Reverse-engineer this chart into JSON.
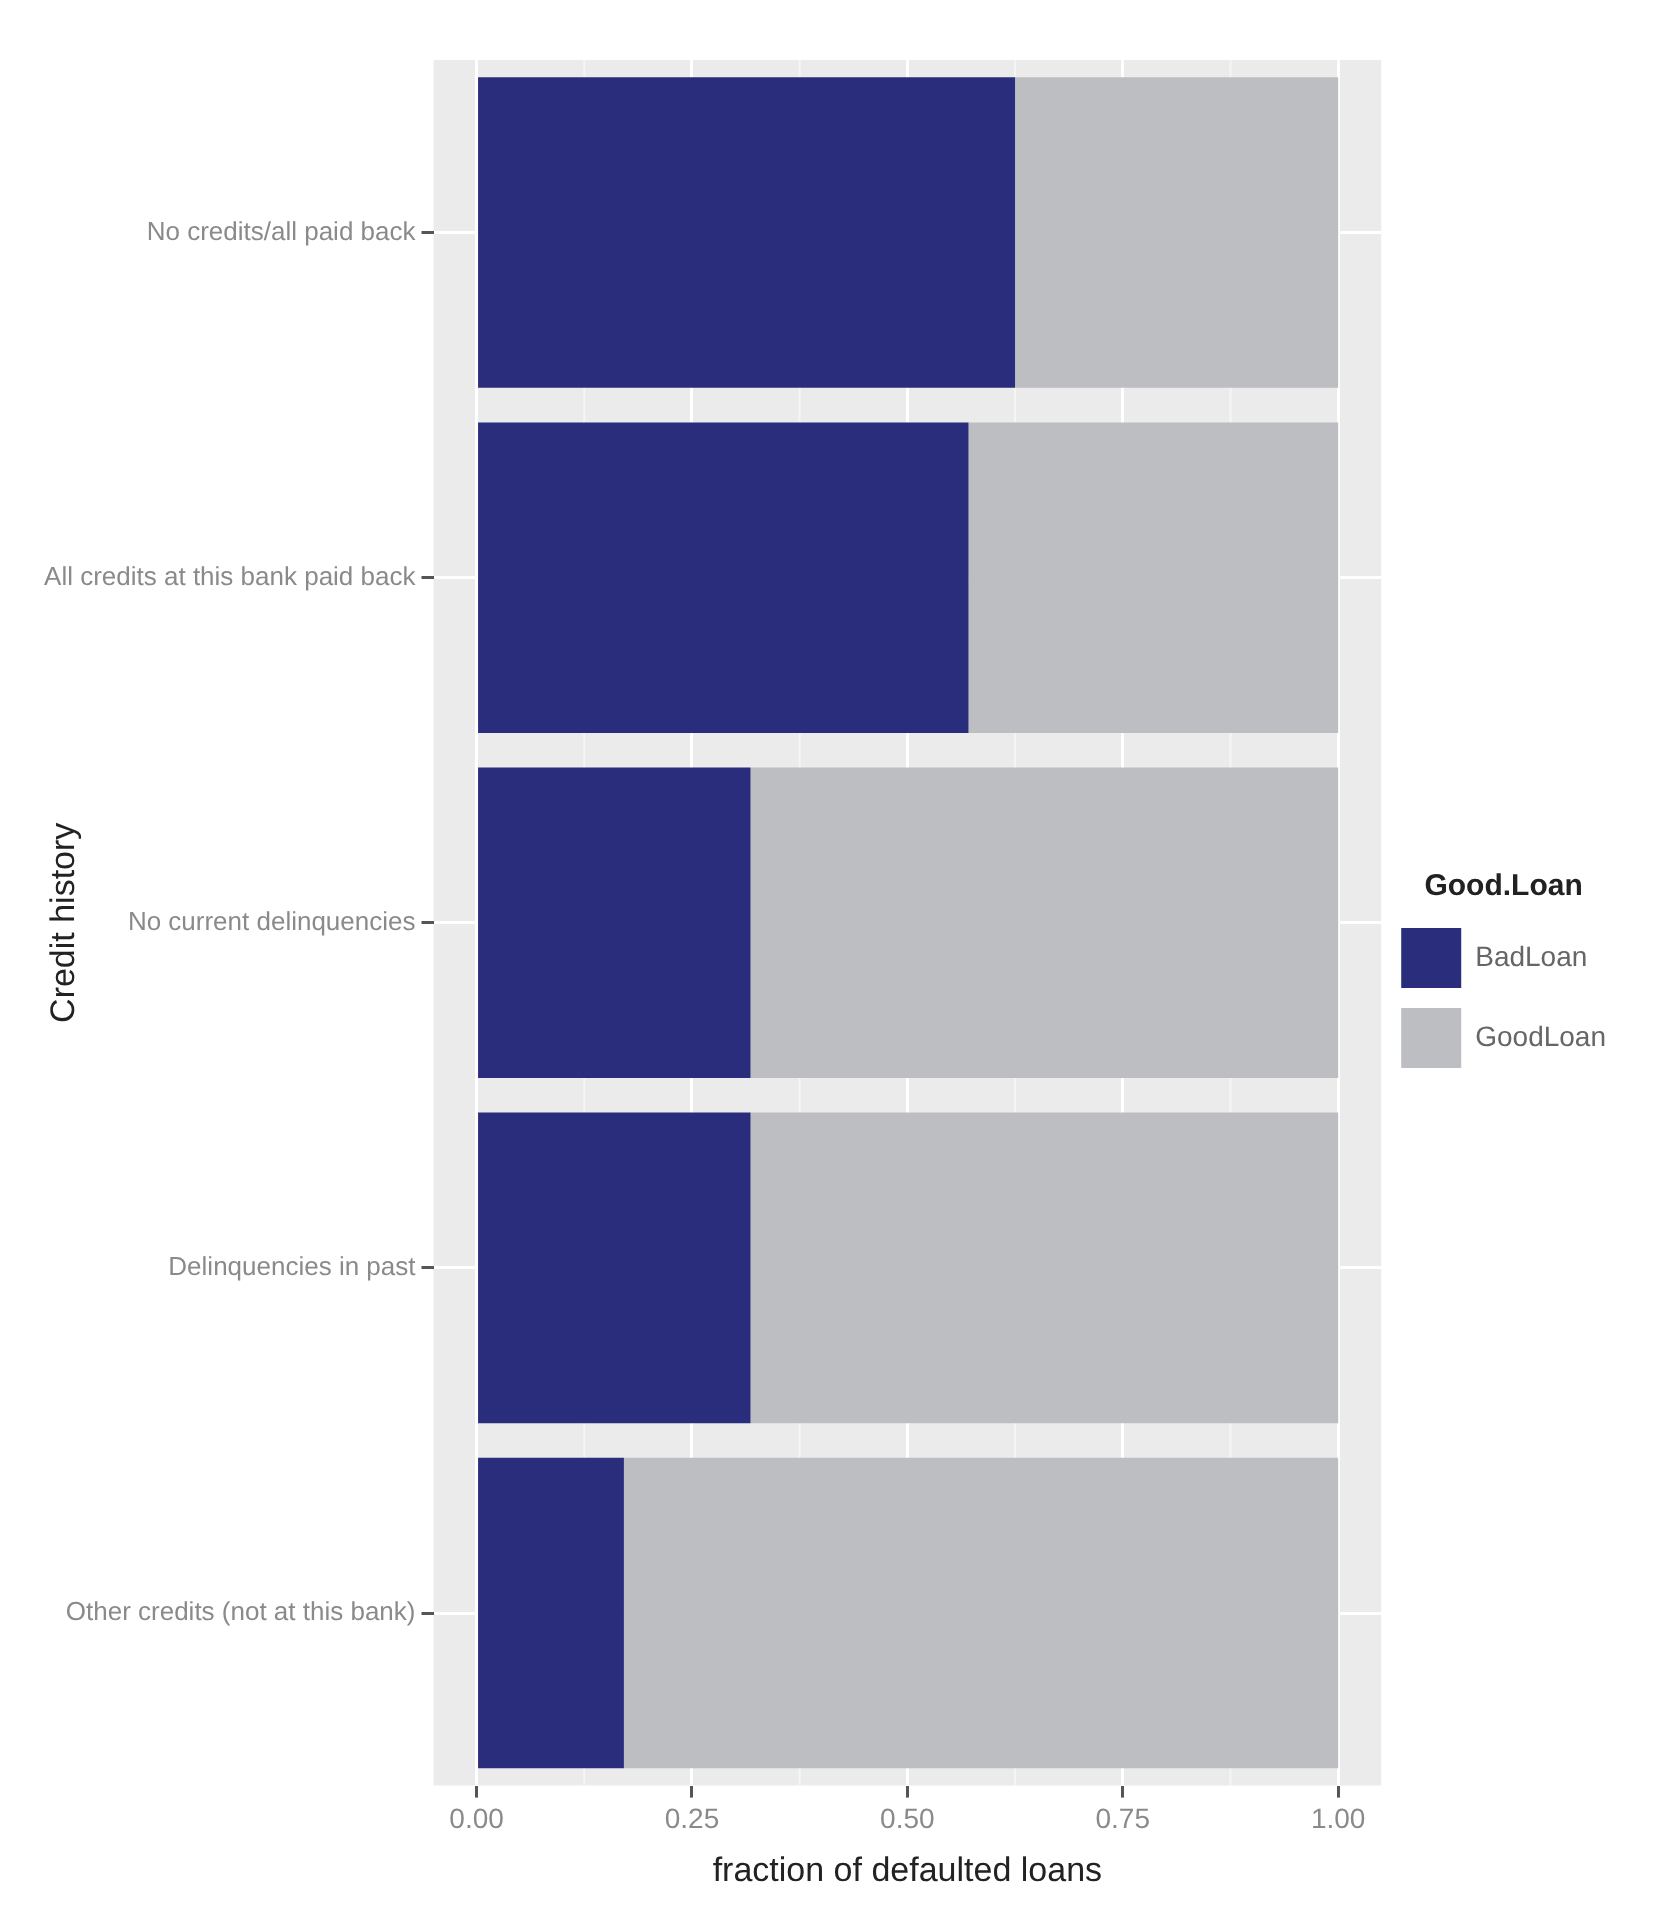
{
  "chart_data": {
    "type": "bar",
    "orientation": "horizontal",
    "stacked": true,
    "xlabel": "fraction of defaulted loans",
    "ylabel": "Credit history",
    "legend_title": "Good.Loan",
    "legend": "right",
    "grid": true,
    "categories": [
      "No credits/all paid back",
      "All credits at this bank paid back",
      "No current delinquencies",
      "Delinquencies in past",
      "Other credits (not at this bank)"
    ],
    "series": [
      {
        "name": "BadLoan",
        "color": "#2a2d7c",
        "values": [
          0.625,
          0.571,
          0.318,
          0.318,
          0.171
        ]
      },
      {
        "name": "GoodLoan",
        "color": "#bdbec2",
        "values": [
          0.375,
          0.429,
          0.682,
          0.682,
          0.829
        ]
      }
    ],
    "xlim": [
      -0.05,
      1.05
    ],
    "xticks": [
      {
        "value": 0,
        "label": "0.00"
      },
      {
        "value": 0.25,
        "label": "0.25"
      },
      {
        "value": 0.5,
        "label": "0.50"
      },
      {
        "value": 0.75,
        "label": "0.75"
      },
      {
        "value": 1,
        "label": "1.00"
      }
    ]
  }
}
